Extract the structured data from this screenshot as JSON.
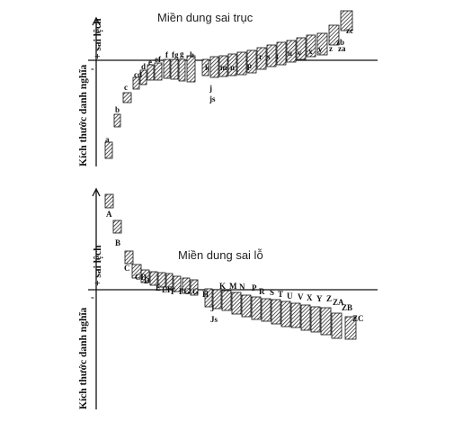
{
  "shaft_panel": {
    "title": "Miền dung sai trục",
    "axis_label": "Kích thước danh nghĩa",
    "deviation_label": "+ sai lệch",
    "plus_sign": "+",
    "minus_sign": "-",
    "zero_marks": [
      "j",
      "js"
    ],
    "bars": [
      {
        "label": "a"
      },
      {
        "label": "b"
      },
      {
        "label": "c"
      },
      {
        "label": "cd"
      },
      {
        "label": "d"
      },
      {
        "label": "e"
      },
      {
        "label": "ef"
      },
      {
        "label": "f"
      },
      {
        "label": "fg"
      },
      {
        "label": "g"
      },
      {
        "label": "h"
      },
      {
        "label": "k"
      },
      {
        "label": "m"
      },
      {
        "label": "n"
      },
      {
        "label": "p"
      },
      {
        "label": "r"
      },
      {
        "label": "s"
      },
      {
        "label": "t"
      },
      {
        "label": "u"
      },
      {
        "label": "v"
      },
      {
        "label": "x"
      },
      {
        "label": "y"
      },
      {
        "label": "z"
      },
      {
        "label": "za"
      },
      {
        "label": "zb"
      },
      {
        "label": "zc"
      }
    ]
  },
  "hole_panel": {
    "title": "Miền dung sai lỗ",
    "axis_label": "Kích thước danh nghĩa",
    "deviation_label": "+ sai lệch",
    "plus_sign": "+",
    "minus_sign": "-",
    "zero_marks": [
      "J",
      "Js"
    ],
    "bars": [
      {
        "label": "A"
      },
      {
        "label": "B"
      },
      {
        "label": "C"
      },
      {
        "label": "CD"
      },
      {
        "label": "D"
      },
      {
        "label": "E"
      },
      {
        "label": "EF"
      },
      {
        "label": "F"
      },
      {
        "label": "FG"
      },
      {
        "label": "G"
      },
      {
        "label": "H"
      },
      {
        "label": "K"
      },
      {
        "label": "M"
      },
      {
        "label": "N"
      },
      {
        "label": "P"
      },
      {
        "label": "R"
      },
      {
        "label": "S"
      },
      {
        "label": "T"
      },
      {
        "label": "U"
      },
      {
        "label": "V"
      },
      {
        "label": "X"
      },
      {
        "label": "Y"
      },
      {
        "label": "Z"
      },
      {
        "label": "ZA"
      },
      {
        "label": "ZB"
      },
      {
        "label": "ZC"
      }
    ]
  }
}
